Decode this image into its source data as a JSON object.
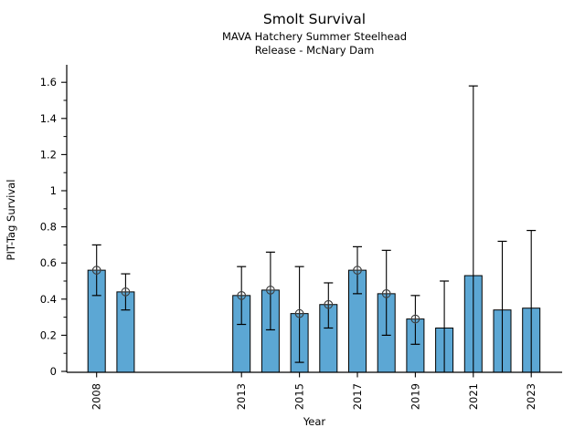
{
  "header": {
    "title": "Smolt Survival",
    "subtitle1": "MAVA Hatchery Summer Steelhead",
    "subtitle2": "Release - McNary Dam"
  },
  "colors": {
    "bar_fill": "#5CA7D4",
    "bar_edge": "#000000",
    "error_bar": "#000000",
    "marker": "#3a3a3a",
    "axis": "#000000",
    "background": "#ffffff"
  },
  "chart_data": {
    "type": "bar",
    "title": "Smolt Survival",
    "subtitle1": "MAVA Hatchery Summer Steelhead",
    "subtitle2": "Release - McNary Dam",
    "xlabel": "Year",
    "ylabel": "PIT-Tag Survival",
    "ylim": [
      0,
      1.7
    ],
    "xlim": [
      2007,
      2024
    ],
    "grid": false,
    "legend": "none",
    "y_major_ticks": [
      0,
      0.2,
      0.4,
      0.6,
      0.8,
      1,
      1.2,
      1.4,
      1.6
    ],
    "y_tick_labels": [
      "0",
      "0.2",
      "0.4",
      "0.6",
      "0.8",
      "1",
      "1.2",
      "1.4",
      "1.6"
    ],
    "y_minor_ticks": [
      0.1,
      0.3,
      0.5,
      0.7,
      0.9,
      1.1,
      1.3,
      1.5
    ],
    "x_ticks": [
      2008,
      2013,
      2015,
      2017,
      2019,
      2021,
      2023
    ],
    "x_tick_labels": [
      "2008",
      "2013",
      "2015",
      "2017",
      "2019",
      "2021",
      "2023"
    ],
    "marker_style": "circle-plus",
    "error_bars": "95% interval whiskers with caps",
    "points": [
      {
        "year": 2008,
        "value": 0.56,
        "ci_low": 0.42,
        "ci_high": 0.7,
        "marker": true
      },
      {
        "year": 2009,
        "value": 0.44,
        "ci_low": 0.34,
        "ci_high": 0.54,
        "marker": true
      },
      {
        "year": 2013,
        "value": 0.42,
        "ci_low": 0.26,
        "ci_high": 0.58,
        "marker": true
      },
      {
        "year": 2014,
        "value": 0.45,
        "ci_low": 0.23,
        "ci_high": 0.66,
        "marker": true
      },
      {
        "year": 2015,
        "value": 0.32,
        "ci_low": 0.05,
        "ci_high": 0.58,
        "marker": true
      },
      {
        "year": 2016,
        "value": 0.37,
        "ci_low": 0.24,
        "ci_high": 0.49,
        "marker": true
      },
      {
        "year": 2017,
        "value": 0.56,
        "ci_low": 0.43,
        "ci_high": 0.69,
        "marker": true
      },
      {
        "year": 2018,
        "value": 0.43,
        "ci_low": 0.2,
        "ci_high": 0.67,
        "marker": true
      },
      {
        "year": 2019,
        "value": 0.29,
        "ci_low": 0.15,
        "ci_high": 0.42,
        "marker": true
      },
      {
        "year": 2020,
        "value": 0.24,
        "ci_low": 0.0,
        "ci_high": 0.5,
        "marker": false
      },
      {
        "year": 2021,
        "value": 0.53,
        "ci_low": 0.0,
        "ci_high": 1.58,
        "marker": false
      },
      {
        "year": 2022,
        "value": 0.34,
        "ci_low": 0.0,
        "ci_high": 0.72,
        "marker": false
      },
      {
        "year": 2023,
        "value": 0.35,
        "ci_low": 0.0,
        "ci_high": 0.78,
        "marker": false
      }
    ]
  }
}
